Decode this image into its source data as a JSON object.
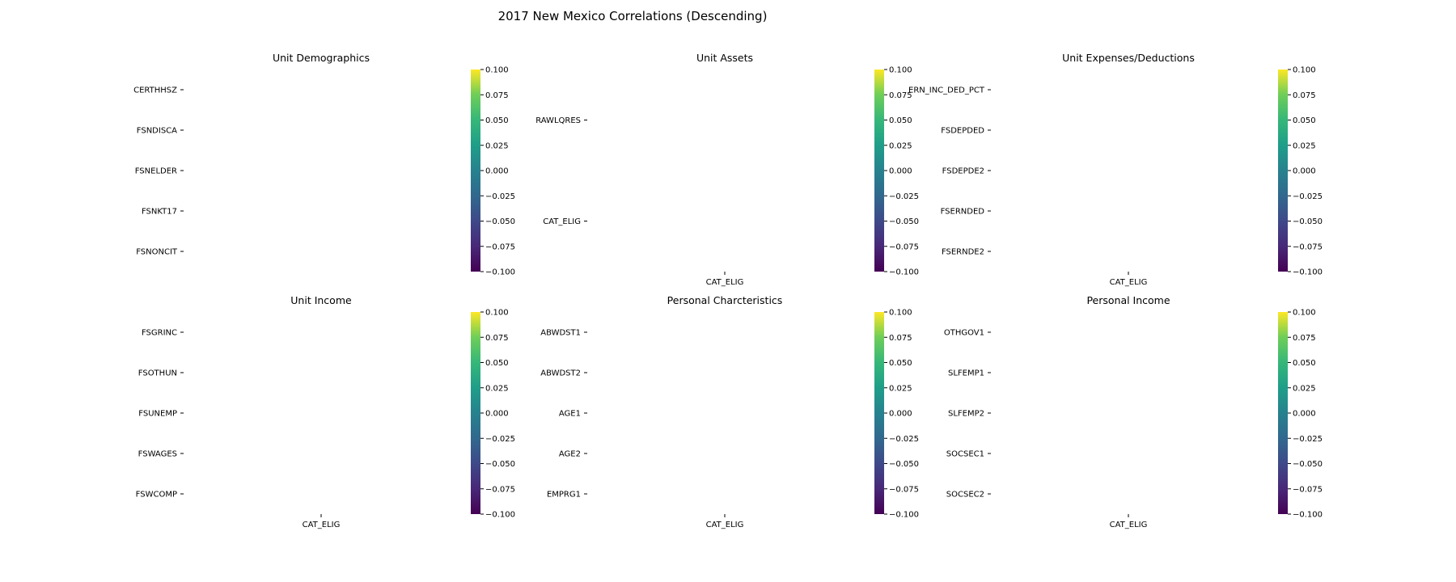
{
  "chart_data": {
    "title": "2017 New Mexico Correlations (Descending)",
    "type": "heatmap",
    "colormap": "viridis",
    "colorbar": {
      "range": [
        -0.1,
        0.1
      ],
      "ticks": [
        "0.100",
        "0.075",
        "0.050",
        "0.025",
        "0.000",
        "−0.025",
        "−0.050",
        "−0.075",
        "−0.100"
      ]
    },
    "panels": [
      {
        "title": "Unit Demographics",
        "rows": [
          "CERTHHSZ",
          "FSNDISCA",
          "FSNELDER",
          "FSNKT17",
          "FSNONCIT"
        ],
        "columns": []
      },
      {
        "title": "Unit Assets",
        "rows": [
          "RAWLQRES",
          "CAT_ELIG"
        ],
        "columns": [
          "CAT_ELIG"
        ]
      },
      {
        "title": "Unit Expenses/Deductions",
        "rows": [
          "ERN_INC_DED_PCT",
          "FSDEPDED",
          "FSDEPDE2",
          "FSERNDED",
          "FSERNDE2"
        ],
        "columns": [
          "CAT_ELIG"
        ]
      },
      {
        "title": "Unit Income",
        "rows": [
          "FSGRINC",
          "FSOTHUN",
          "FSUNEMP",
          "FSWAGES",
          "FSWCOMP"
        ],
        "columns": [
          "CAT_ELIG"
        ]
      },
      {
        "title": "Personal Charcteristics",
        "rows": [
          "ABWDST1",
          "ABWDST2",
          "AGE1",
          "AGE2",
          "EMPRG1"
        ],
        "columns": [
          "CAT_ELIG"
        ]
      },
      {
        "title": "Personal Income",
        "rows": [
          "OTHGOV1",
          "SLFEMP1",
          "SLFEMP2",
          "SOCSEC1",
          "SOCSEC2"
        ],
        "columns": [
          "CAT_ELIG"
        ]
      }
    ]
  }
}
